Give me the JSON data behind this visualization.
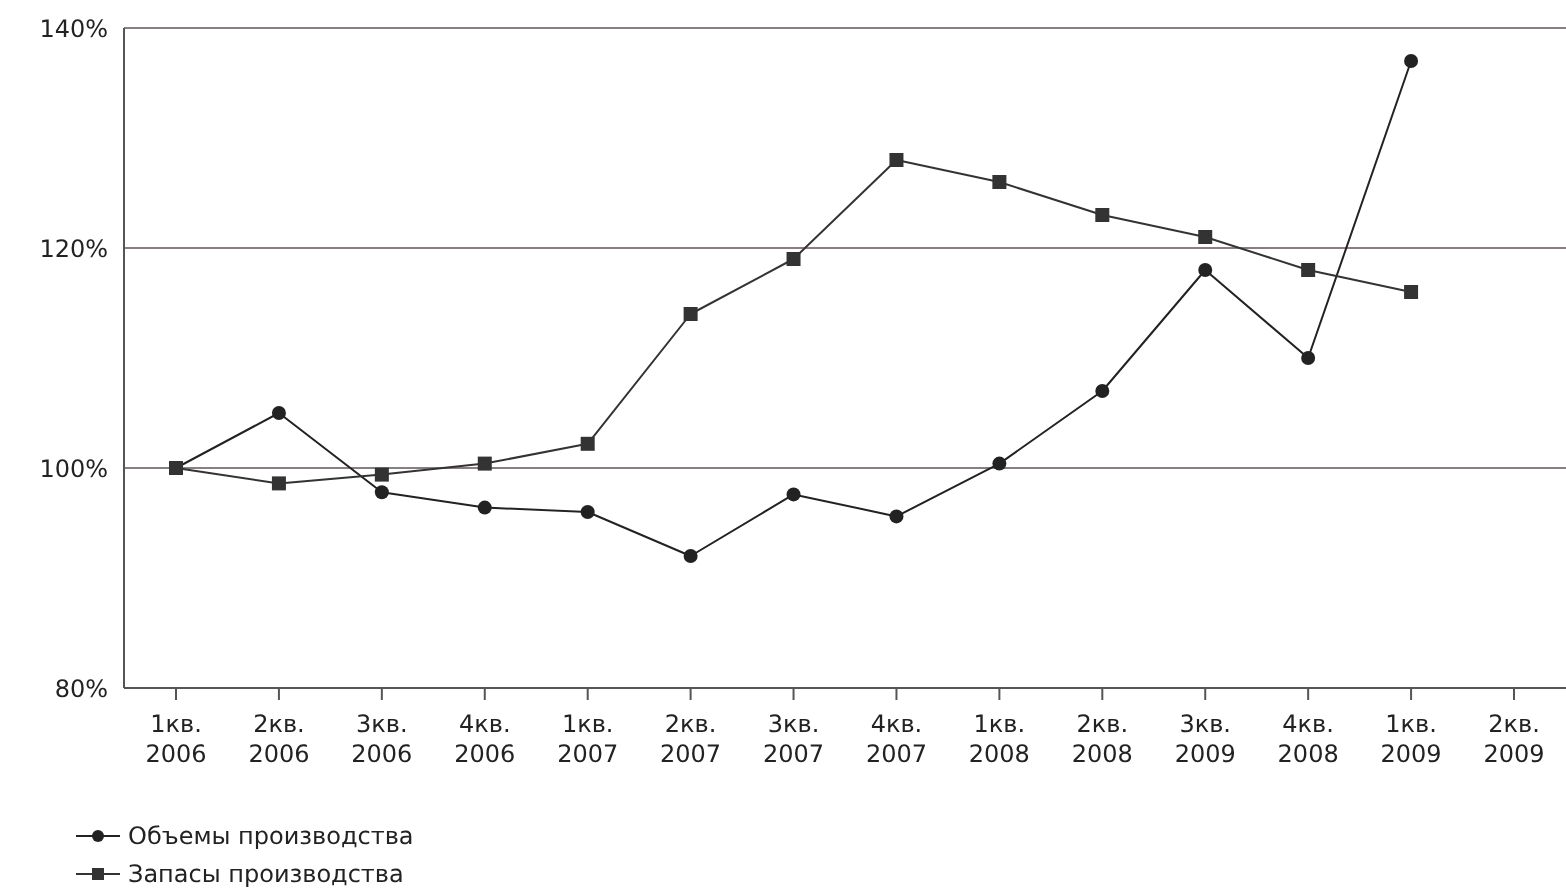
{
  "chart_data": {
    "type": "line",
    "categories": [
      "1кв. 2006",
      "2кв. 2006",
      "3кв. 2006",
      "4кв. 2006",
      "1кв. 2007",
      "2кв. 2007",
      "3кв. 2007",
      "4кв. 2007",
      "1кв. 2008",
      "2кв. 2008",
      "3кв. 2009",
      "4кв. 2008",
      "1кв. 2009",
      "2кв. 2009"
    ],
    "series": [
      {
        "name": "Объемы производства",
        "color": "#222222",
        "marker": "circle",
        "values": [
          100,
          105,
          97.8,
          96.4,
          96,
          92,
          97.6,
          95.6,
          100.4,
          107,
          118,
          110,
          137,
          null
        ]
      },
      {
        "name": "Запасы производства",
        "color": "#333333",
        "marker": "square",
        "values": [
          100,
          98.6,
          99.4,
          100.4,
          102.2,
          114,
          119,
          128,
          126,
          123,
          121,
          118,
          116,
          null
        ]
      }
    ],
    "ylim": [
      80,
      140
    ],
    "yticks": [
      {
        "value": 80,
        "label": "80%"
      },
      {
        "value": 100,
        "label": "100%"
      },
      {
        "value": 120,
        "label": "120%"
      },
      {
        "value": 140,
        "label": "140%"
      }
    ],
    "grid": "y",
    "legend": "bottom left",
    "line_style": "solid"
  }
}
